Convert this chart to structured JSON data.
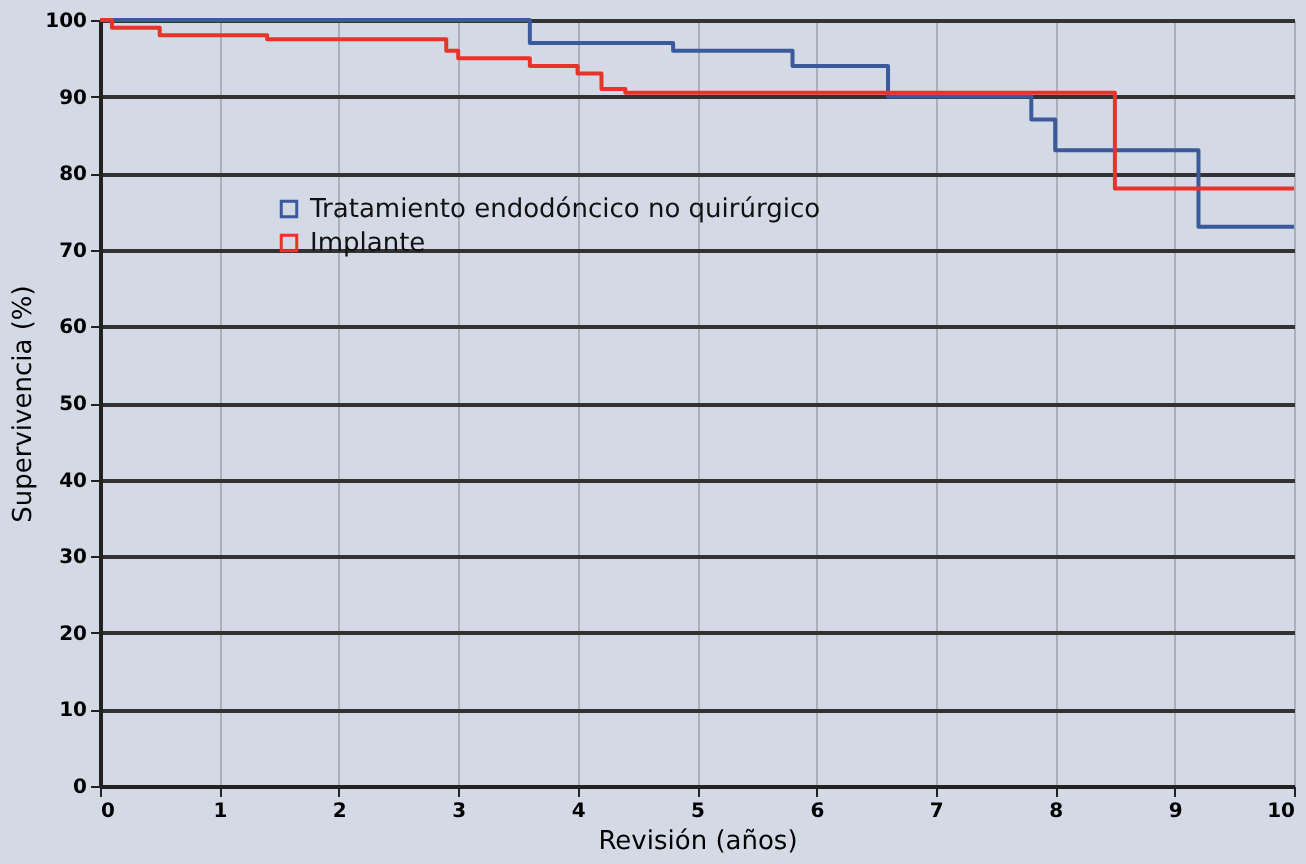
{
  "chart_data": {
    "type": "step",
    "xlabel": "Revisión (años)",
    "ylabel": "Supervivencia (%)",
    "xlim": [
      0,
      10
    ],
    "xticks": [
      0,
      1,
      2,
      3,
      4,
      5,
      6,
      7,
      8,
      9,
      10
    ],
    "ylim": [
      0,
      100
    ],
    "yticks": [
      0,
      10,
      20,
      30,
      40,
      50,
      60,
      70,
      80,
      90,
      100
    ],
    "grid": true,
    "legend": "top left",
    "line_style": "solid",
    "series": [
      {
        "name": "Tratamiento  endodóncico no quirúrgico",
        "color": "#3a5a9c",
        "x": [
          0,
          3.6,
          4.8,
          5.8,
          6.6,
          7.8,
          8.0,
          9.2,
          10
        ],
        "values": [
          100,
          97,
          96,
          94,
          90,
          87,
          83,
          73,
          73
        ]
      },
      {
        "name": "Implante",
        "color": "#e8332a",
        "x": [
          0,
          0.1,
          0.5,
          1.4,
          2.9,
          3.0,
          3.6,
          4.0,
          4.2,
          4.4,
          8.5,
          10
        ],
        "values": [
          100,
          99,
          98,
          97.5,
          96,
          95,
          94,
          93,
          91,
          90.5,
          78,
          78
        ]
      }
    ]
  }
}
